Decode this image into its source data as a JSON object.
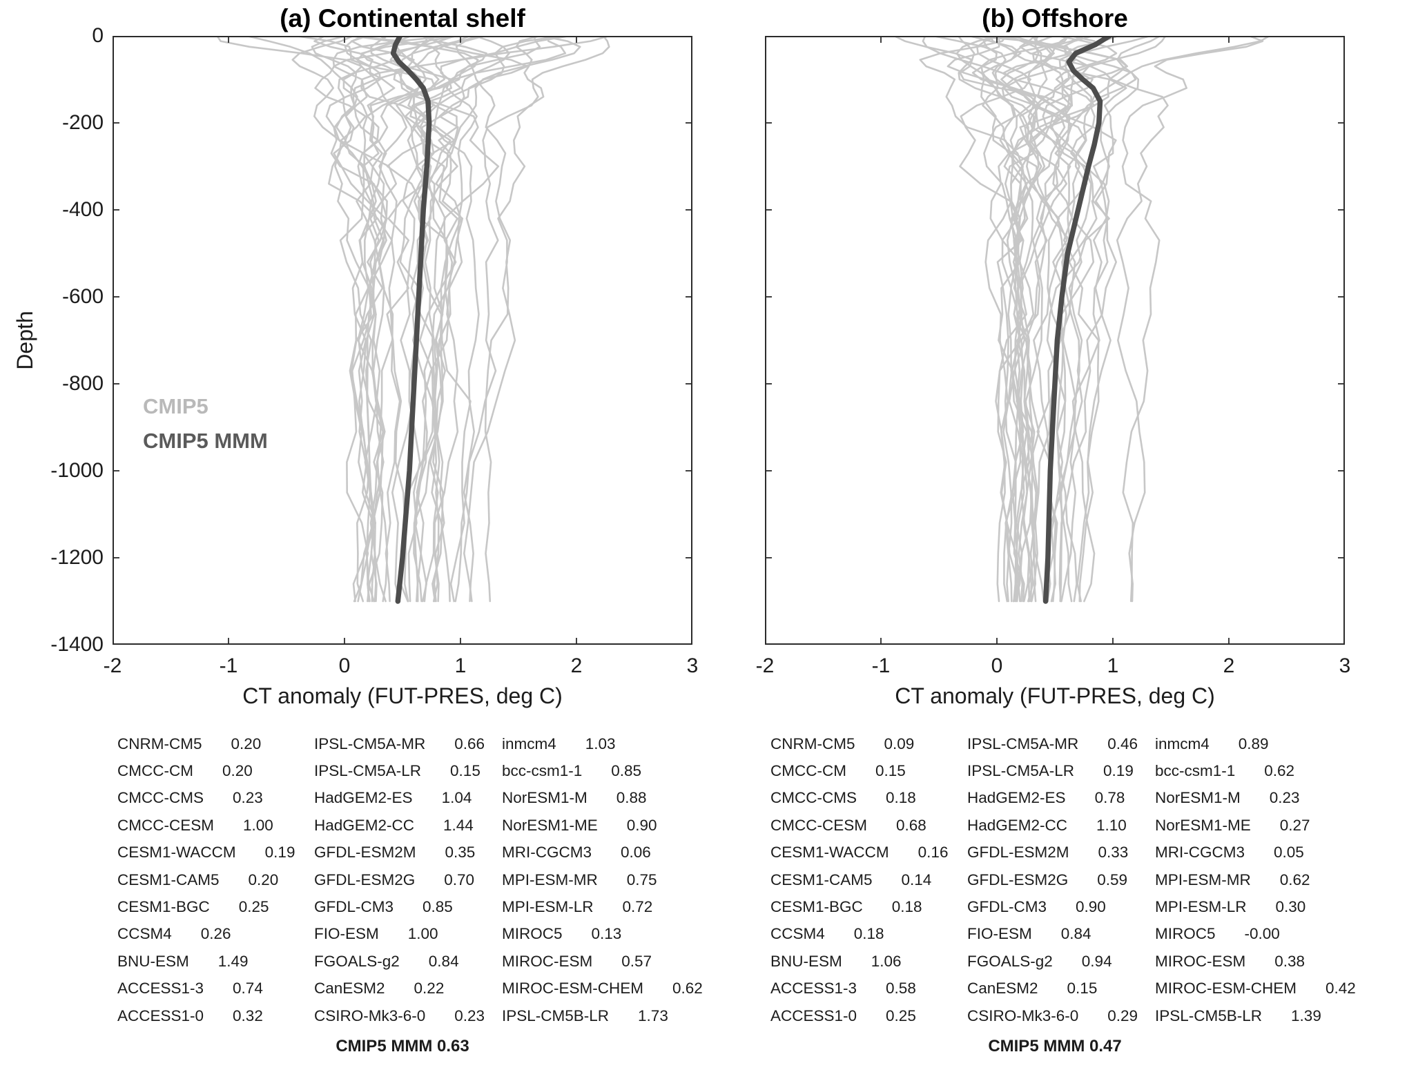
{
  "figure": {
    "ylabel": "Depth",
    "legend": {
      "cmip5": "CMIP5",
      "mmm": "CMIP5 MMM"
    },
    "colors": {
      "model_line": "#c7c7c7",
      "mmm_line": "#4d4d4d",
      "axis": "#2b2b2b",
      "legend_cmip5": "#b9b9b9",
      "legend_mmm": "#5a5a5a"
    }
  },
  "chart_data": {
    "type": "line",
    "description": "Vertical profiles of CT anomaly (FUT-PRES) vs depth; light gray lines are individual CMIP5 models, thick dark line is CMIP5 multi-model mean (MMM). Tables list per-model mean anomalies.",
    "panels": [
      {
        "id": "a",
        "title": "(a) Continental shelf",
        "xlabel": "CT anomaly (FUT-PRES, deg C)",
        "xlim": [
          -2,
          3
        ],
        "ylim": [
          -1400,
          0
        ],
        "xticks": [
          -2,
          -1,
          0,
          1,
          2,
          3
        ],
        "yticks": [
          0,
          -200,
          -400,
          -600,
          -800,
          -1000,
          -1200,
          -1400
        ],
        "show_depth_labels": true,
        "show_legend": true,
        "mmm_profile": {
          "depth": [
            0,
            -20,
            -40,
            -60,
            -80,
            -100,
            -120,
            -150,
            -200,
            -250,
            -300,
            -400,
            -500,
            -600,
            -700,
            -800,
            -900,
            -1000,
            -1100,
            -1200,
            -1300
          ],
          "value": [
            0.48,
            0.44,
            0.42,
            0.47,
            0.55,
            0.62,
            0.68,
            0.72,
            0.73,
            0.72,
            0.71,
            0.68,
            0.66,
            0.64,
            0.62,
            0.6,
            0.58,
            0.56,
            0.53,
            0.5,
            0.46
          ]
        },
        "table_columns": [
          [
            {
              "name": "CNRM-CM5",
              "value": "0.20"
            },
            {
              "name": "CMCC-CM",
              "value": "0.20"
            },
            {
              "name": "CMCC-CMS",
              "value": "0.23"
            },
            {
              "name": "CMCC-CESM",
              "value": "1.00"
            },
            {
              "name": "CESM1-WACCM",
              "value": "0.19"
            },
            {
              "name": "CESM1-CAM5",
              "value": "0.20"
            },
            {
              "name": "CESM1-BGC",
              "value": "0.25"
            },
            {
              "name": "CCSM4",
              "value": "0.26"
            },
            {
              "name": "BNU-ESM",
              "value": "1.49"
            },
            {
              "name": "ACCESS1-3",
              "value": "0.74"
            },
            {
              "name": "ACCESS1-0",
              "value": "0.32"
            }
          ],
          [
            {
              "name": "IPSL-CM5A-MR",
              "value": "0.66"
            },
            {
              "name": "IPSL-CM5A-LR",
              "value": "0.15"
            },
            {
              "name": "HadGEM2-ES",
              "value": "1.04"
            },
            {
              "name": "HadGEM2-CC",
              "value": "1.44"
            },
            {
              "name": "GFDL-ESM2M",
              "value": "0.35"
            },
            {
              "name": "GFDL-ESM2G",
              "value": "0.70"
            },
            {
              "name": "GFDL-CM3",
              "value": "0.85"
            },
            {
              "name": "FIO-ESM",
              "value": "1.00"
            },
            {
              "name": "FGOALS-g2",
              "value": "0.84"
            },
            {
              "name": "CanESM2",
              "value": "0.22"
            },
            {
              "name": "CSIRO-Mk3-6-0",
              "value": "0.23"
            }
          ],
          [
            {
              "name": "inmcm4",
              "value": "1.03"
            },
            {
              "name": "bcc-csm1-1",
              "value": "0.85"
            },
            {
              "name": "NorESM1-M",
              "value": "0.88"
            },
            {
              "name": "NorESM1-ME",
              "value": "0.90"
            },
            {
              "name": "MRI-CGCM3",
              "value": "0.06"
            },
            {
              "name": "MPI-ESM-MR",
              "value": "0.75"
            },
            {
              "name": "MPI-ESM-LR",
              "value": "0.72"
            },
            {
              "name": "MIROC5",
              "value": "0.13"
            },
            {
              "name": "MIROC-ESM",
              "value": "0.57"
            },
            {
              "name": "MIROC-ESM-CHEM",
              "value": "0.62"
            },
            {
              "name": "IPSL-CM5B-LR",
              "value": "1.73"
            }
          ]
        ],
        "footer": "CMIP5 MMM 0.63"
      },
      {
        "id": "b",
        "title": "(b) Offshore",
        "xlabel": "CT anomaly (FUT-PRES, deg C)",
        "xlim": [
          -2,
          3
        ],
        "ylim": [
          -1400,
          0
        ],
        "xticks": [
          -2,
          -1,
          0,
          1,
          2,
          3
        ],
        "yticks": [
          0,
          -200,
          -400,
          -600,
          -800,
          -1000,
          -1200,
          -1400
        ],
        "show_depth_labels": false,
        "show_legend": false,
        "mmm_profile": {
          "depth": [
            0,
            -20,
            -40,
            -60,
            -80,
            -100,
            -120,
            -150,
            -200,
            -250,
            -300,
            -400,
            -500,
            -600,
            -700,
            -800,
            -900,
            -1000,
            -1100,
            -1200,
            -1300
          ],
          "value": [
            0.97,
            0.85,
            0.68,
            0.62,
            0.66,
            0.74,
            0.83,
            0.89,
            0.88,
            0.84,
            0.79,
            0.7,
            0.61,
            0.56,
            0.52,
            0.5,
            0.48,
            0.46,
            0.45,
            0.44,
            0.42
          ]
        },
        "table_columns": [
          [
            {
              "name": "CNRM-CM5",
              "value": "0.09"
            },
            {
              "name": "CMCC-CM",
              "value": "0.15"
            },
            {
              "name": "CMCC-CMS",
              "value": "0.18"
            },
            {
              "name": "CMCC-CESM",
              "value": "0.68"
            },
            {
              "name": "CESM1-WACCM",
              "value": "0.16"
            },
            {
              "name": "CESM1-CAM5",
              "value": "0.14"
            },
            {
              "name": "CESM1-BGC",
              "value": "0.18"
            },
            {
              "name": "CCSM4",
              "value": "0.18"
            },
            {
              "name": "BNU-ESM",
              "value": "1.06"
            },
            {
              "name": "ACCESS1-3",
              "value": "0.58"
            },
            {
              "name": "ACCESS1-0",
              "value": "0.25"
            }
          ],
          [
            {
              "name": "IPSL-CM5A-MR",
              "value": "0.46"
            },
            {
              "name": "IPSL-CM5A-LR",
              "value": "0.19"
            },
            {
              "name": "HadGEM2-ES",
              "value": "0.78"
            },
            {
              "name": "HadGEM2-CC",
              "value": "1.10"
            },
            {
              "name": "GFDL-ESM2M",
              "value": "0.33"
            },
            {
              "name": "GFDL-ESM2G",
              "value": "0.59"
            },
            {
              "name": "GFDL-CM3",
              "value": "0.90"
            },
            {
              "name": "FIO-ESM",
              "value": "0.84"
            },
            {
              "name": "FGOALS-g2",
              "value": "0.94"
            },
            {
              "name": "CanESM2",
              "value": "0.15"
            },
            {
              "name": "CSIRO-Mk3-6-0",
              "value": "0.29"
            }
          ],
          [
            {
              "name": "inmcm4",
              "value": "0.89"
            },
            {
              "name": "bcc-csm1-1",
              "value": "0.62"
            },
            {
              "name": "NorESM1-M",
              "value": "0.23"
            },
            {
              "name": "NorESM1-ME",
              "value": "0.27"
            },
            {
              "name": "MRI-CGCM3",
              "value": "0.05"
            },
            {
              "name": "MPI-ESM-MR",
              "value": "0.62"
            },
            {
              "name": "MPI-ESM-LR",
              "value": "0.30"
            },
            {
              "name": "MIROC5",
              "value": "-0.00"
            },
            {
              "name": "MIROC-ESM",
              "value": "0.38"
            },
            {
              "name": "MIROC-ESM-CHEM",
              "value": "0.42"
            },
            {
              "name": "IPSL-CM5B-LR",
              "value": "1.39"
            }
          ]
        ],
        "footer": "CMIP5 MMM 0.47"
      }
    ]
  }
}
